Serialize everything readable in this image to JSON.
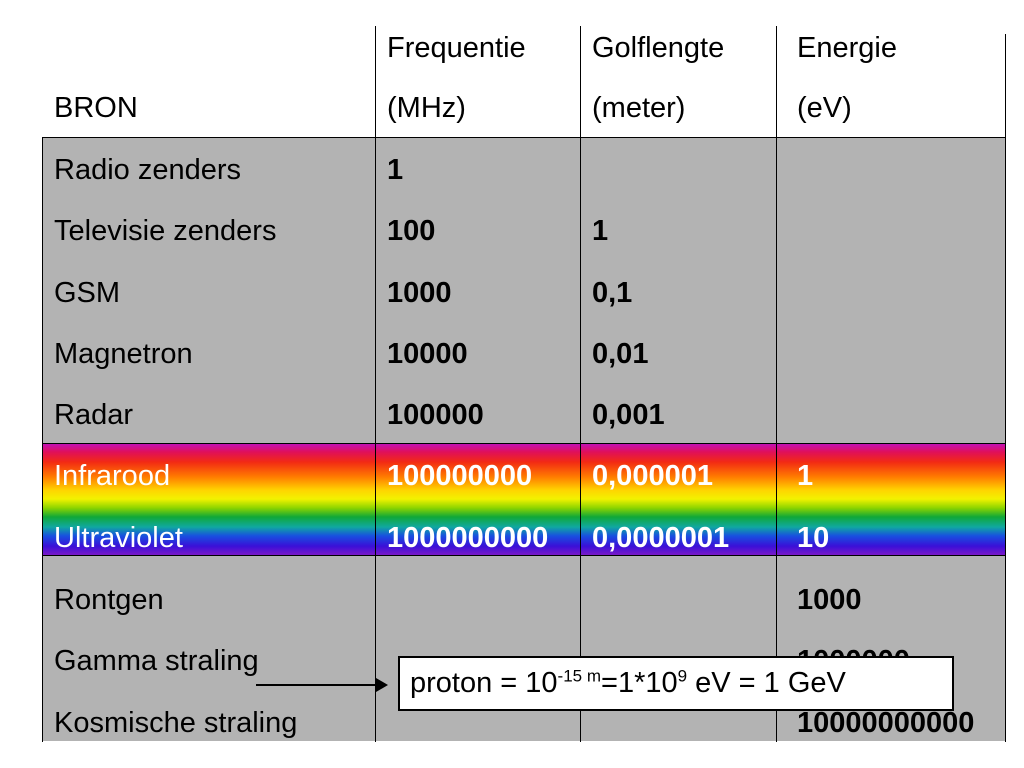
{
  "headers": {
    "bron": "BRON",
    "freq_line1": "Frequentie",
    "freq_line2": "(MHz)",
    "golf_line1": "Golflengte",
    "golf_line2": "(meter)",
    "energie_line1": "Energie",
    "energie_line2": "(eV)"
  },
  "rows": [
    {
      "bron": "Radio zenders",
      "freq": "1",
      "golf": "",
      "energie": ""
    },
    {
      "bron": "Televisie zenders",
      "freq": "100",
      "golf": "1",
      "energie": ""
    },
    {
      "bron": "GSM",
      "freq": "1000",
      "golf": "0,1",
      "energie": ""
    },
    {
      "bron": "Magnetron",
      "freq": "10000",
      "golf": "0,01",
      "energie": ""
    },
    {
      "bron": "Radar",
      "freq": "100000",
      "golf": "0,001",
      "energie": ""
    },
    {
      "bron": "Infrarood",
      "freq": "100000000",
      "golf": "0,000001",
      "energie": "1"
    },
    {
      "bron": "Ultraviolet",
      "freq": "1000000000",
      "golf": "0,0000001",
      "energie": "10"
    },
    {
      "bron": "Rontgen",
      "freq": "",
      "golf": "",
      "energie": "1000"
    },
    {
      "bron": "Gamma straling",
      "freq": "",
      "golf": "",
      "energie": "1000000"
    },
    {
      "bron": "Kosmische straling",
      "freq": "",
      "golf": "",
      "energie": "10000000000"
    }
  ],
  "callout": {
    "prefix": "proton = 10",
    "exp1": "-15 m",
    "middle": "=1*10",
    "exp2": "9",
    "suffix": " eV = 1 GeV"
  },
  "colors": {
    "table_gray": "#b3b3b3",
    "highlight_text": "#ffffff"
  }
}
